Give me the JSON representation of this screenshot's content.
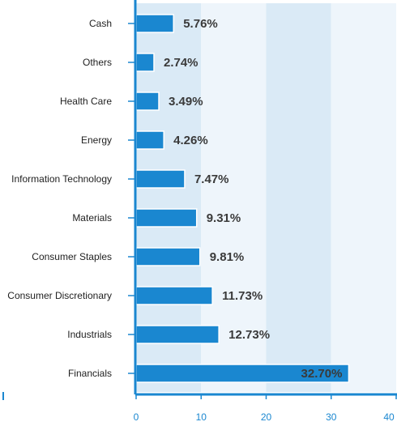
{
  "chart_data": {
    "type": "bar",
    "orientation": "horizontal",
    "categories": [
      "Cash",
      "Others",
      "Health Care",
      "Energy",
      "Information Technology",
      "Materials",
      "Consumer Staples",
      "Consumer Discretionary",
      "Industrials",
      "Financials"
    ],
    "values": [
      5.76,
      2.74,
      3.49,
      4.26,
      7.47,
      9.31,
      9.81,
      11.73,
      12.73,
      32.7
    ],
    "value_labels": [
      "5.76%",
      "2.74%",
      "3.49%",
      "4.26%",
      "7.47%",
      "9.31%",
      "9.81%",
      "11.73%",
      "12.73%",
      "32.70%"
    ],
    "xlim": [
      0,
      40
    ],
    "xticks": [
      0,
      10,
      20,
      30,
      40
    ],
    "xtick_labels": [
      "0",
      "10",
      "20",
      "30",
      "40"
    ],
    "title": "",
    "xlabel": "",
    "ylabel": "",
    "grid": "alternating vertical bands",
    "colors": {
      "bar": "#1a87d0",
      "bar_border": "#ffffff",
      "axis": "#1a87d0",
      "band_dark": "#daeaf6",
      "band_light": "#eef5fb",
      "category_text": "#222222",
      "value_text": "#3a3a3a",
      "tick_text": "#1a87d0"
    }
  }
}
